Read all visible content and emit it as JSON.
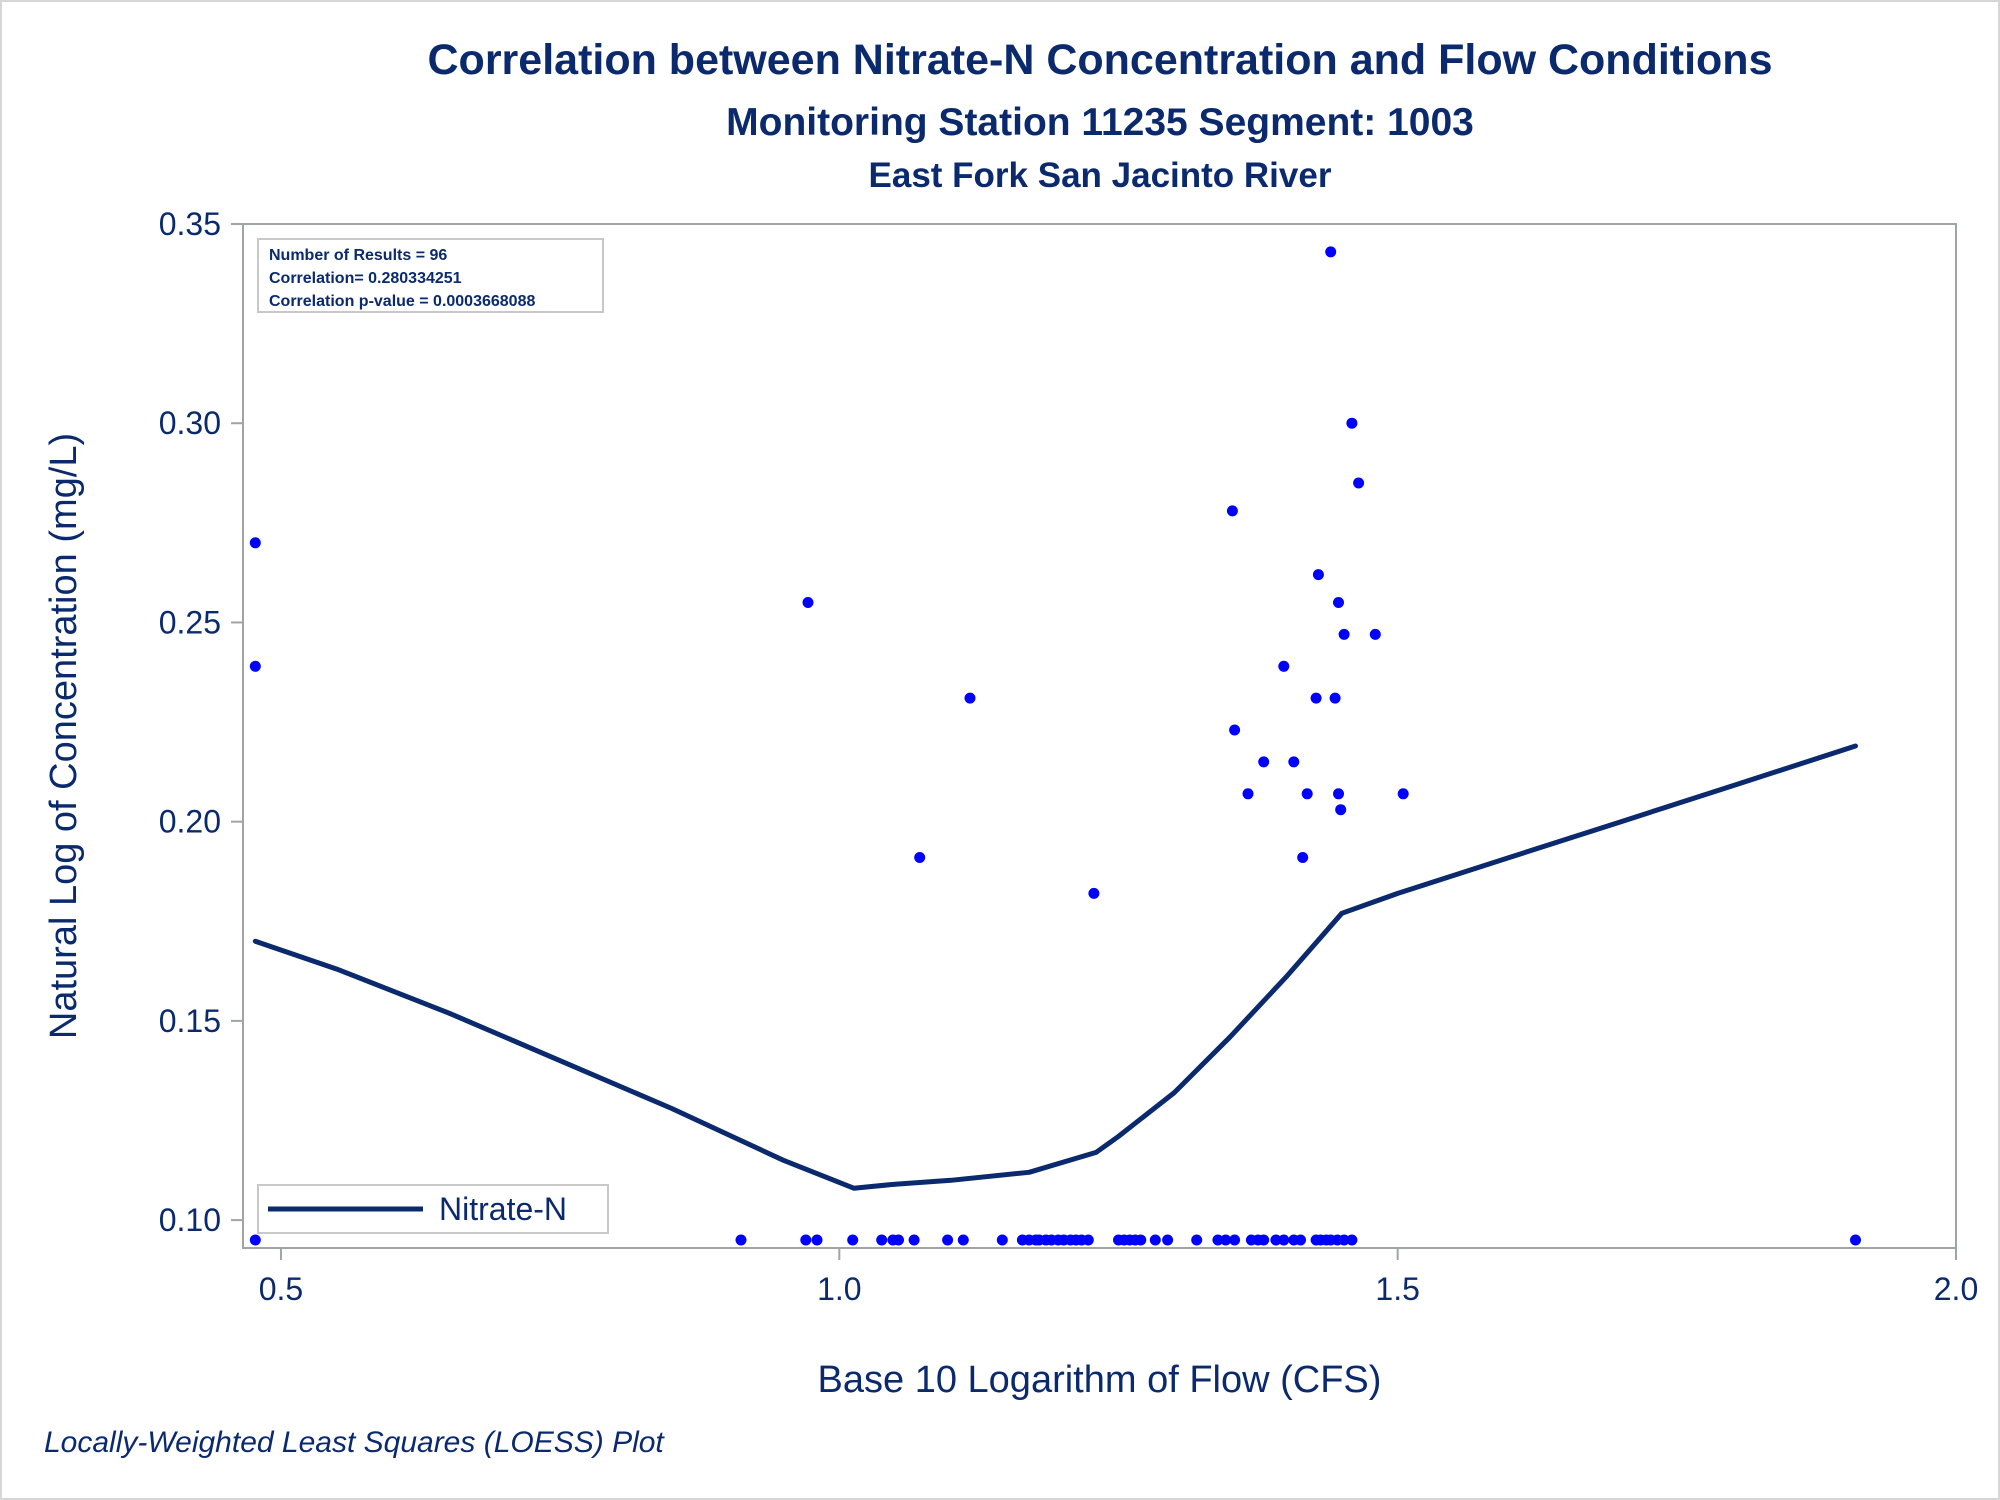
{
  "chart_data": {
    "type": "scatter",
    "title": "Correlation between Nitrate-N Concentration and Flow Conditions",
    "subtitle": "Monitoring Station 11235 Segment: 1003",
    "subtitle2": "East Fork San Jacinto River",
    "xlabel": "Base 10 Logarithm of Flow (CFS)",
    "ylabel": "Natural Log of Concentration (mg/L)",
    "footnote": "Locally-Weighted Least Squares (LOESS) Plot",
    "xlim": [
      0.466,
      2.0
    ],
    "ylim": [
      0.093,
      0.35
    ],
    "xticks": [
      "0.5",
      "1.0",
      "1.5",
      "2.0"
    ],
    "yticks": [
      "0.10",
      "0.15",
      "0.20",
      "0.25",
      "0.30",
      "0.35"
    ],
    "grid": false,
    "legend_position": "bottom-left",
    "colors": {
      "points": "#0000ff",
      "line": "#0b2a6e",
      "text": "#0b2a6e",
      "frame": "#a0a4a8"
    },
    "stats": [
      "Number of Results = 96",
      "Correlation= 0.280334251",
      "Correlation p-value = 0.0003668088"
    ],
    "series": [
      {
        "kind": "scatter",
        "points": [
          [
            0.477,
            0.27
          ],
          [
            0.477,
            0.239
          ],
          [
            0.477,
            0.095
          ],
          [
            0.972,
            0.255
          ],
          [
            1.072,
            0.191
          ],
          [
            1.117,
            0.231
          ],
          [
            1.228,
            0.182
          ],
          [
            1.352,
            0.278
          ],
          [
            1.354,
            0.223
          ],
          [
            1.366,
            0.207
          ],
          [
            1.38,
            0.215
          ],
          [
            1.398,
            0.239
          ],
          [
            1.407,
            0.215
          ],
          [
            1.415,
            0.191
          ],
          [
            1.419,
            0.207
          ],
          [
            1.427,
            0.231
          ],
          [
            1.429,
            0.262
          ],
          [
            1.44,
            0.343
          ],
          [
            1.444,
            0.231
          ],
          [
            1.447,
            0.255
          ],
          [
            1.447,
            0.207
          ],
          [
            1.449,
            0.203
          ],
          [
            1.452,
            0.247
          ],
          [
            1.459,
            0.3
          ],
          [
            1.465,
            0.285
          ],
          [
            1.48,
            0.247
          ],
          [
            1.505,
            0.207
          ],
          [
            0.912,
            0.095
          ],
          [
            0.97,
            0.095
          ],
          [
            0.98,
            0.095
          ],
          [
            1.012,
            0.095
          ],
          [
            1.038,
            0.095
          ],
          [
            1.048,
            0.095
          ],
          [
            1.053,
            0.095
          ],
          [
            1.067,
            0.095
          ],
          [
            1.097,
            0.095
          ],
          [
            1.111,
            0.095
          ],
          [
            1.146,
            0.095
          ],
          [
            1.164,
            0.095
          ],
          [
            1.17,
            0.095
          ],
          [
            1.176,
            0.095
          ],
          [
            1.179,
            0.095
          ],
          [
            1.185,
            0.095
          ],
          [
            1.19,
            0.095
          ],
          [
            1.196,
            0.095
          ],
          [
            1.201,
            0.095
          ],
          [
            1.207,
            0.095
          ],
          [
            1.212,
            0.095
          ],
          [
            1.217,
            0.095
          ],
          [
            1.223,
            0.095
          ],
          [
            1.25,
            0.095
          ],
          [
            1.255,
            0.095
          ],
          [
            1.26,
            0.095
          ],
          [
            1.265,
            0.095
          ],
          [
            1.27,
            0.095
          ],
          [
            1.283,
            0.095
          ],
          [
            1.294,
            0.095
          ],
          [
            1.32,
            0.095
          ],
          [
            1.339,
            0.095
          ],
          [
            1.346,
            0.095
          ],
          [
            1.354,
            0.095
          ],
          [
            1.369,
            0.095
          ],
          [
            1.375,
            0.095
          ],
          [
            1.38,
            0.095
          ],
          [
            1.391,
            0.095
          ],
          [
            1.398,
            0.095
          ],
          [
            1.407,
            0.095
          ],
          [
            1.413,
            0.095
          ],
          [
            1.427,
            0.095
          ],
          [
            1.431,
            0.095
          ],
          [
            1.436,
            0.095
          ],
          [
            1.44,
            0.095
          ],
          [
            1.446,
            0.095
          ],
          [
            1.452,
            0.095
          ],
          [
            1.459,
            0.095
          ],
          [
            1.91,
            0.095
          ]
        ]
      },
      {
        "kind": "line",
        "name": "Nitrate-N",
        "points": [
          [
            0.477,
            0.17
          ],
          [
            0.55,
            0.163
          ],
          [
            0.65,
            0.152
          ],
          [
            0.75,
            0.14
          ],
          [
            0.85,
            0.128
          ],
          [
            0.95,
            0.115
          ],
          [
            1.013,
            0.108
          ],
          [
            1.05,
            0.109
          ],
          [
            1.1,
            0.11
          ],
          [
            1.17,
            0.112
          ],
          [
            1.23,
            0.117
          ],
          [
            1.25,
            0.121
          ],
          [
            1.3,
            0.132
          ],
          [
            1.35,
            0.146
          ],
          [
            1.4,
            0.161
          ],
          [
            1.45,
            0.177
          ],
          [
            1.5,
            0.182
          ],
          [
            1.6,
            0.191
          ],
          [
            1.7,
            0.2
          ],
          [
            1.8,
            0.209
          ],
          [
            1.91,
            0.219
          ]
        ]
      }
    ]
  }
}
